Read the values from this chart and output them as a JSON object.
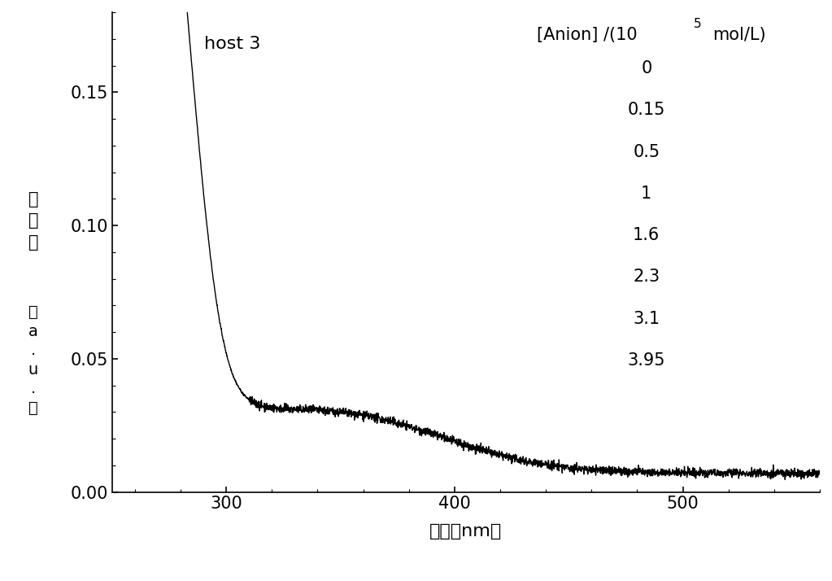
{
  "title": "host 3",
  "xlabel": "波长（nm）",
  "xlim": [
    250,
    560
  ],
  "ylim": [
    0.0,
    0.18
  ],
  "xticks": [
    300,
    400,
    500
  ],
  "yticks": [
    0.0,
    0.05,
    0.1,
    0.15
  ],
  "legend_values": [
    "0",
    "0.15",
    "0.5",
    "1",
    "1.6",
    "2.3",
    "3.1",
    "3.95"
  ],
  "background_color": "#ffffff",
  "line_color": "#000000"
}
